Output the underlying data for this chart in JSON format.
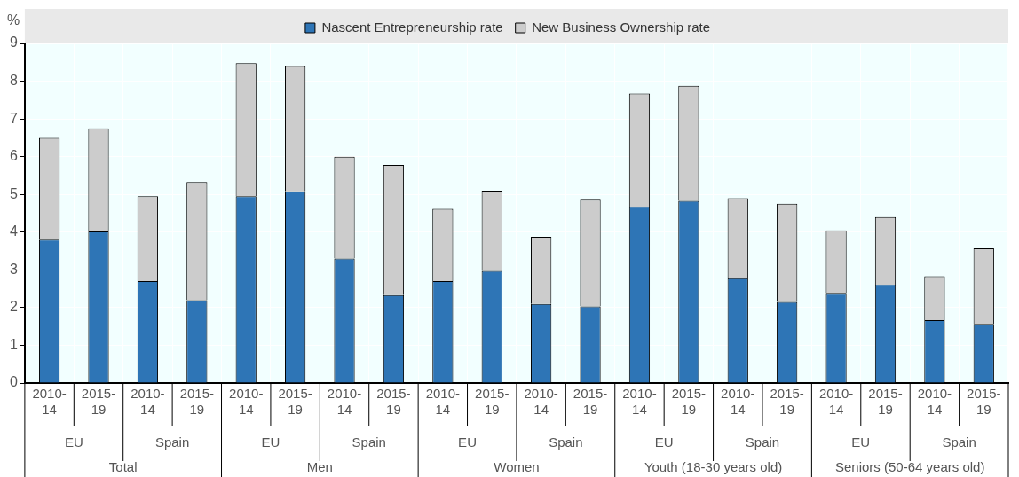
{
  "chart_data": {
    "type": "bar",
    "stacked": true,
    "ylabel": "%",
    "legend": "top",
    "grid": true,
    "categories": [
      "2010-14",
      "2015-19",
      "2010-14",
      "2015-19",
      "2010-14",
      "2015-19",
      "2010-14",
      "2015-19",
      "2010-14",
      "2015-19",
      "2010-14",
      "2015-19",
      "2010-14",
      "2015-19",
      "2010-14",
      "2015-19",
      "2010-14",
      "2015-19",
      "2010-14",
      "2015-19"
    ],
    "series": [
      {
        "name": "Nascent Entrepreneurship rate",
        "color": "#2e75b6",
        "values": [
          3.8,
          4.02,
          2.7,
          2.2,
          4.95,
          5.08,
          3.3,
          2.33,
          2.7,
          2.97,
          2.1,
          2.03,
          4.67,
          4.83,
          2.78,
          2.15,
          2.37,
          2.6,
          1.67,
          1.57
        ]
      },
      {
        "name": "New Business Ownership rate",
        "color": "#cccccc",
        "values": [
          2.7,
          2.73,
          2.25,
          3.13,
          3.53,
          3.32,
          2.7,
          3.45,
          1.92,
          2.13,
          1.78,
          2.83,
          3.0,
          3.05,
          2.12,
          2.6,
          1.68,
          1.8,
          1.16,
          2.0
        ]
      }
    ],
    "ylim": [
      0,
      9
    ],
    "yticks": [
      0,
      1,
      2,
      3,
      4,
      5,
      6,
      7,
      8,
      9
    ],
    "annotations": [
      "EU",
      "Spain",
      "EU",
      "Spain",
      "EU",
      "Spain",
      "EU",
      "Spain",
      "EU",
      "Spain",
      "Total",
      "Men",
      "Women",
      "Youth (18-30 years old)",
      "Seniors (50-64 years old)"
    ]
  }
}
